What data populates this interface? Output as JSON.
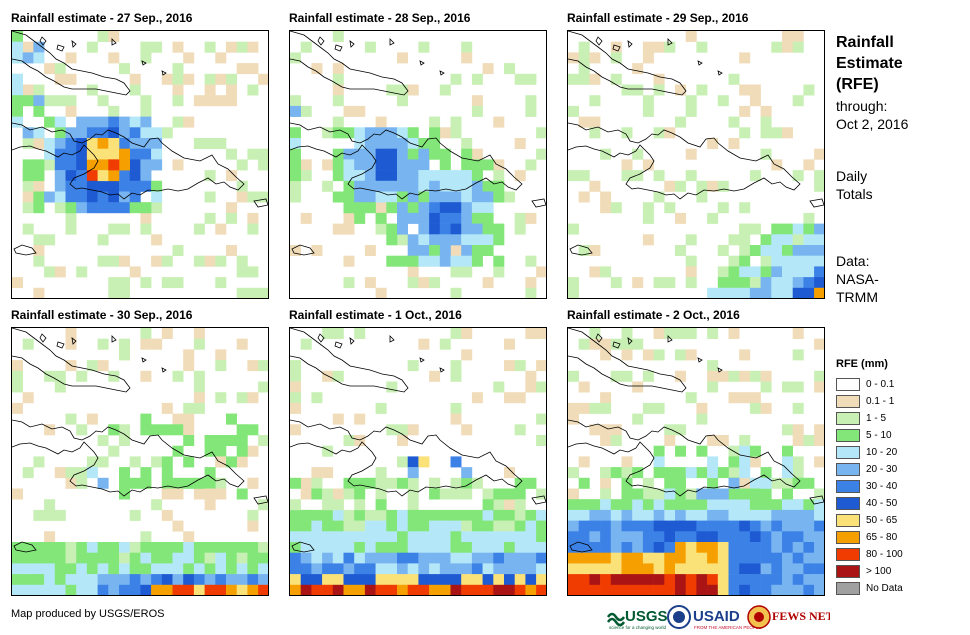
{
  "panels": [
    {
      "title": "Rainfall estimate - 27 Sep., 2016"
    },
    {
      "title": "Rainfall estimate - 28 Sep., 2016"
    },
    {
      "title": "Rainfall estimate - 29 Sep., 2016"
    },
    {
      "title": "Rainfall estimate - 30 Sep., 2016"
    },
    {
      "title": "Rainfall estimate - 1 Oct., 2016"
    },
    {
      "title": "Rainfall estimate - 2 Oct., 2016"
    }
  ],
  "side": {
    "title_line1": "Rainfall",
    "title_line2": "Estimate",
    "title_line3": "(RFE)",
    "through_label": "through:",
    "through_date": "Oct 2, 2016",
    "daily_line1": "Daily",
    "daily_line2": "Totals",
    "data_line1": "Data:",
    "data_line2": "NASA-",
    "data_line3": "TRMM"
  },
  "legend": {
    "title": "RFE (mm)",
    "items": [
      {
        "label": "0 - 0.1",
        "color": "#ffffff"
      },
      {
        "label": "0.1 - 1",
        "color": "#f0dcb8"
      },
      {
        "label": "1 - 5",
        "color": "#c8f0b4"
      },
      {
        "label": "5 - 10",
        "color": "#82e678"
      },
      {
        "label": "10 - 20",
        "color": "#b4e8f8"
      },
      {
        "label": "20 - 30",
        "color": "#78b4f0"
      },
      {
        "label": "30 - 40",
        "color": "#3c82e6"
      },
      {
        "label": "40 - 50",
        "color": "#1e5ad2"
      },
      {
        "label": "50 - 65",
        "color": "#fae178"
      },
      {
        "label": "65 - 80",
        "color": "#f5a000"
      },
      {
        "label": "80 - 100",
        "color": "#f03c00"
      },
      {
        "label": "> 100",
        "color": "#aa1414"
      },
      {
        "label": "No Data",
        "color": "#a0a0a0"
      }
    ]
  },
  "credit": "Map produced by USGS/EROS",
  "logos": {
    "usgs": "USGS",
    "usgs_tagline": "science for a changing world",
    "usaid": "USAID",
    "usaid_tagline": "FROM THE AMERICAN PEOPLE",
    "fews": "FEWS NET"
  }
}
